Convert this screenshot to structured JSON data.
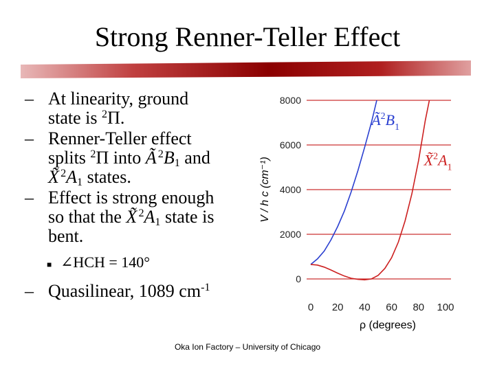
{
  "title": "Strong Renner-Teller Effect",
  "accent_color": "#8b0000",
  "bullets": {
    "b1_line1": "At linearity, ground",
    "b1_line2_pre": "state is ",
    "b1_line2_sup": "2",
    "b1_line2_post": "Π.",
    "b2_line1": "Renner-Teller effect",
    "b2_line2_a": "splits ",
    "b2_line2_sup1": "2",
    "b2_line2_b": "Π into ",
    "b2_line2_A": "Ã",
    "b2_line2_sup2": "2",
    "b2_line2_B": "B",
    "b2_line2_sub1": "1",
    "b2_line2_c": " and",
    "b2_line3_X": "X̃",
    "b2_line3_sup": "2",
    "b2_line3_A": "A",
    "b2_line3_sub": "1",
    "b2_line3_post": " states.",
    "b3_line1": "Effect is strong enough",
    "b3_line2_pre": "so that the ",
    "b3_line2_X": "X̃",
    "b3_line2_sup": "2",
    "b3_line2_A": "A",
    "b3_line2_sub": "1",
    "b3_line2_post": " state is",
    "b3_line3": "bent.",
    "sub_angle": "∠HCH = 140°",
    "b4_pre": "Quasilinear, 1089 cm",
    "b4_sup": "-1"
  },
  "chart_data": {
    "type": "line",
    "xlabel": "ρ (degrees)",
    "ylabel": "V / h c (cm⁻¹)",
    "xlim": [
      0,
      100
    ],
    "ylim": [
      0,
      8000
    ],
    "xticks": [
      "0",
      "20",
      "40",
      "60",
      "80",
      "100"
    ],
    "yticks": [
      "0",
      "2000",
      "4000",
      "6000",
      "8000"
    ],
    "series": [
      {
        "name": "Ã ²B₁",
        "label_A": "Ã",
        "label_sup": "2",
        "label_B": "B",
        "label_sub": "1",
        "color": "#2a3fd0",
        "x": [
          0,
          5,
          10,
          15,
          20,
          25,
          30,
          35,
          40,
          45,
          49
        ],
        "y": [
          650,
          900,
          1250,
          1750,
          2350,
          3050,
          3900,
          4850,
          5900,
          7000,
          8000
        ]
      },
      {
        "name": "X̃ ²A₁",
        "label_X": "X̃",
        "label_sup": "2",
        "label_A": "A",
        "label_sub": "1",
        "color": "#cc2020",
        "x": [
          0,
          5,
          10,
          15,
          20,
          25,
          30,
          35,
          40,
          45,
          50,
          55,
          60,
          65,
          70,
          75,
          80,
          85,
          88
        ],
        "y": [
          650,
          620,
          530,
          400,
          260,
          130,
          30,
          -20,
          -40,
          0,
          160,
          470,
          950,
          1650,
          2600,
          3800,
          5300,
          7100,
          8000
        ]
      }
    ]
  },
  "footer": "Oka Ion Factory – University of Chicago"
}
